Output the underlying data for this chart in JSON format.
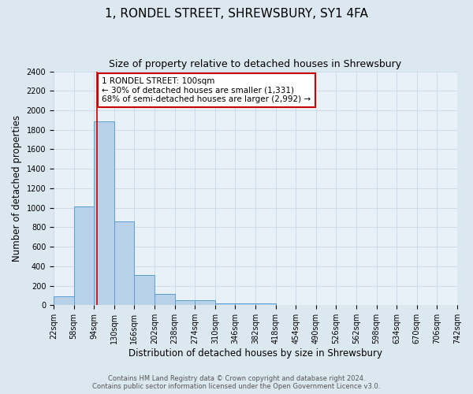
{
  "title": "1, RONDEL STREET, SHREWSBURY, SY1 4FA",
  "subtitle": "Size of property relative to detached houses in Shrewsbury",
  "xlabel": "Distribution of detached houses by size in Shrewsbury",
  "ylabel": "Number of detached properties",
  "footer_line1": "Contains HM Land Registry data © Crown copyright and database right 2024.",
  "footer_line2": "Contains public sector information licensed under the Open Government Licence v3.0.",
  "bar_edges": [
    22,
    58,
    94,
    130,
    166,
    202,
    238,
    274,
    310,
    346,
    382,
    418,
    454,
    490,
    526,
    562,
    598,
    634,
    670,
    706,
    742
  ],
  "bar_heights": [
    90,
    1010,
    1890,
    860,
    310,
    120,
    55,
    48,
    20,
    15,
    20,
    0,
    0,
    0,
    0,
    0,
    0,
    0,
    0,
    0
  ],
  "bar_color": "#b8d0e8",
  "bar_edgecolor": "#5a9fd4",
  "bar_linewidth": 0.7,
  "vline_x": 100,
  "vline_color": "#cc0000",
  "vline_linewidth": 1.2,
  "annotation_text": "1 RONDEL STREET: 100sqm\n← 30% of detached houses are smaller (1,331)\n68% of semi-detached houses are larger (2,992) →",
  "annotation_box_color": "#cc0000",
  "ylim": [
    0,
    2400
  ],
  "yticks": [
    0,
    200,
    400,
    600,
    800,
    1000,
    1200,
    1400,
    1600,
    1800,
    2000,
    2200,
    2400
  ],
  "xtick_labels": [
    "22sqm",
    "58sqm",
    "94sqm",
    "130sqm",
    "166sqm",
    "202sqm",
    "238sqm",
    "274sqm",
    "310sqm",
    "346sqm",
    "382sqm",
    "418sqm",
    "454sqm",
    "490sqm",
    "526sqm",
    "562sqm",
    "598sqm",
    "634sqm",
    "670sqm",
    "706sqm",
    "742sqm"
  ],
  "grid_color": "#c8d8e8",
  "bg_color": "#dce8f0",
  "plot_bg_color": "#e8f0f8",
  "title_fontsize": 11,
  "subtitle_fontsize": 9,
  "axis_label_fontsize": 8.5,
  "tick_fontsize": 7,
  "annotation_fontsize": 7.5,
  "footer_fontsize": 6
}
